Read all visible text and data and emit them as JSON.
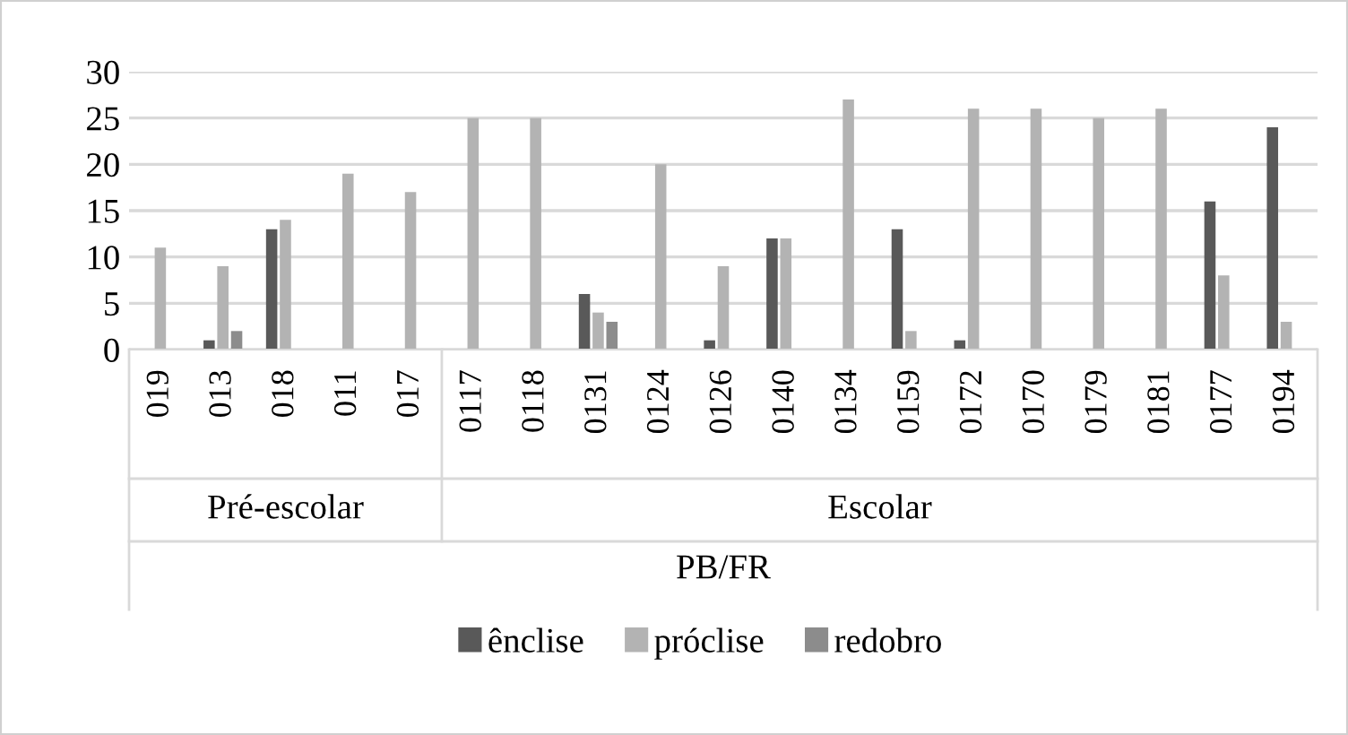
{
  "chart_data": {
    "type": "bar",
    "xlabel": "PB/FR",
    "categories": [
      "019",
      "013",
      "018",
      "011",
      "017",
      "0117",
      "0118",
      "0131",
      "0124",
      "0126",
      "0140",
      "0134",
      "0159",
      "0172",
      "0170",
      "0179",
      "0181",
      "0177",
      "0194"
    ],
    "series": [
      {
        "name": "ênclise",
        "color": "#595959",
        "values": [
          0,
          1,
          13,
          0,
          0,
          0,
          0,
          6,
          0,
          1,
          12,
          0,
          13,
          1,
          0,
          0,
          0,
          16,
          24
        ]
      },
      {
        "name": "próclise",
        "color": "#b3b3b3",
        "values": [
          11,
          9,
          14,
          19,
          17,
          25,
          25,
          4,
          20,
          9,
          12,
          27,
          2,
          26,
          26,
          25,
          26,
          8,
          3
        ]
      },
      {
        "name": "redobro",
        "color": "#8c8c8c",
        "values": [
          0,
          2,
          0,
          0,
          0,
          0,
          0,
          3,
          0,
          0,
          0,
          0,
          0,
          0,
          0,
          0,
          0,
          0,
          0
        ]
      }
    ],
    "annotations": [
      "Pré-escolar",
      "Escolar"
    ],
    "ylim": [
      0,
      30
    ],
    "yticks": [
      0,
      5,
      10,
      15,
      20,
      25,
      30
    ],
    "grid": "y",
    "legend": "bottom"
  }
}
